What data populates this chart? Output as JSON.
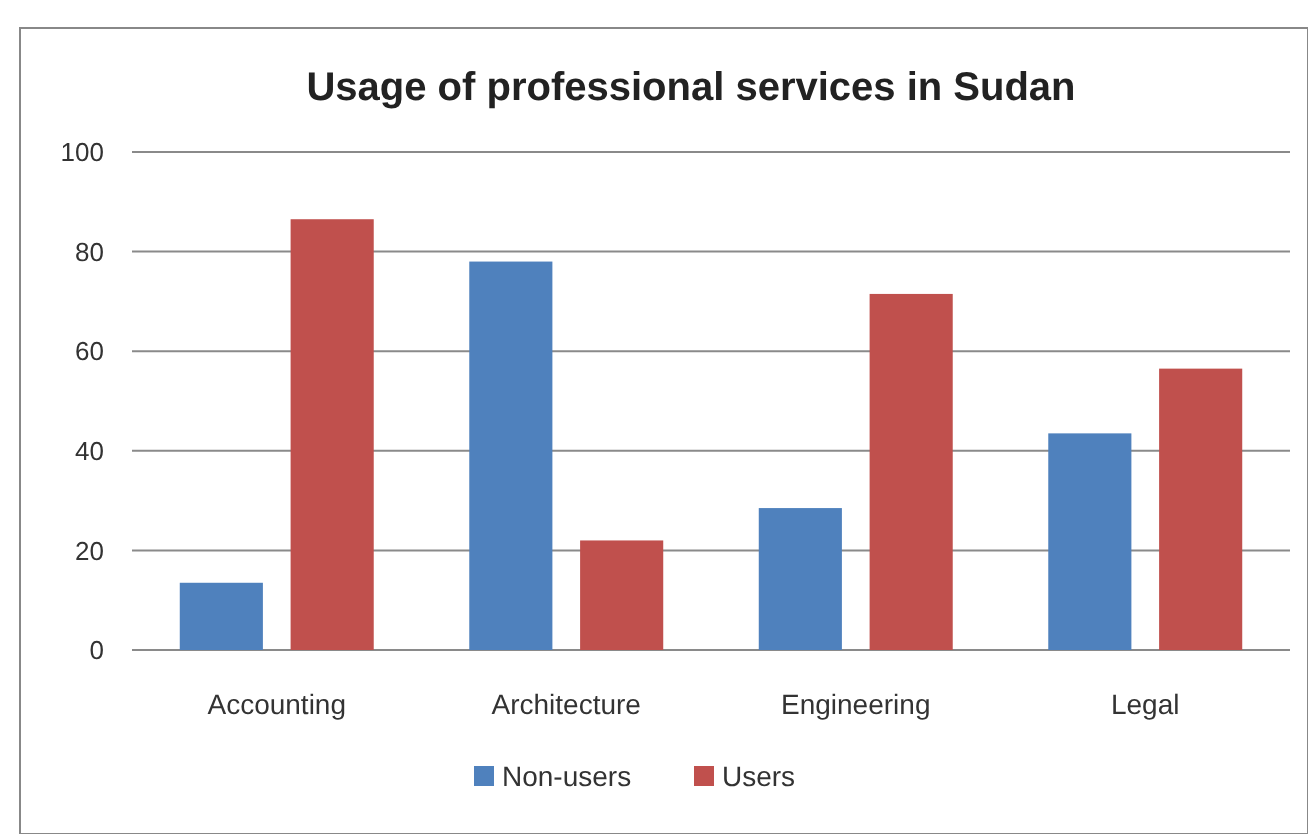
{
  "chart_data": {
    "type": "bar",
    "title": "Usage of professional services in Sudan",
    "categories": [
      "Accounting",
      "Architecture",
      "Engineering",
      "Legal"
    ],
    "series": [
      {
        "name": "Non-users",
        "color": "#4f81bd",
        "values": [
          13.5,
          78,
          28.5,
          43.5
        ]
      },
      {
        "name": "Users",
        "color": "#c0504d",
        "values": [
          86.5,
          22,
          71.5,
          56.5
        ]
      }
    ],
    "ylim": [
      0,
      100
    ],
    "yticks": [
      0,
      20,
      40,
      60,
      80,
      100
    ],
    "grid": "y",
    "legend": "bottom"
  }
}
